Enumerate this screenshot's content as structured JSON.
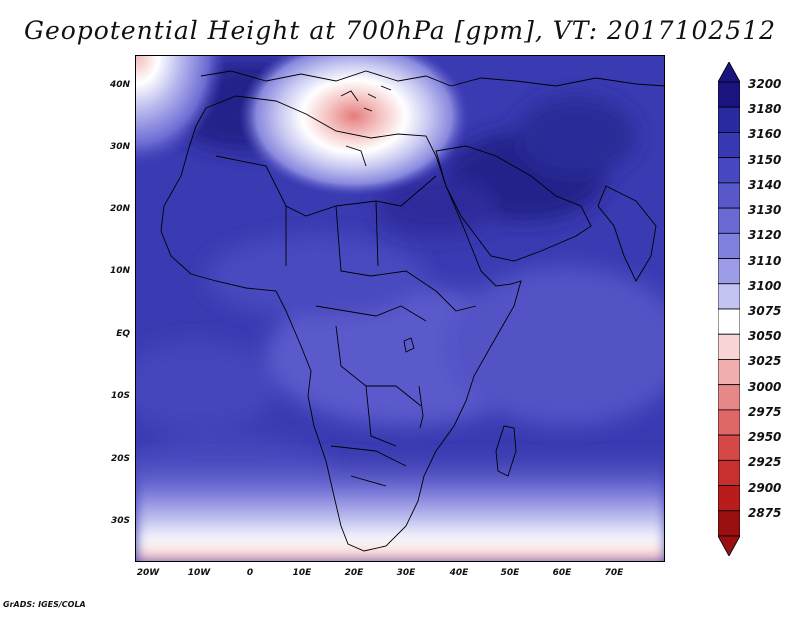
{
  "title": "Geopotential Height at 700hPa [gpm], VT: 2017102512",
  "footer": "GrADS: IGES/COLA",
  "latitude_ticks": [
    "40N",
    "30N",
    "20N",
    "10N",
    "EQ",
    "10S",
    "20S",
    "30S"
  ],
  "longitude_ticks": [
    "20W",
    "10W",
    "0",
    "10E",
    "20E",
    "30E",
    "40E",
    "50E",
    "60E",
    "70E"
  ],
  "colorbar": {
    "labels": [
      "3200",
      "3180",
      "3160",
      "3150",
      "3140",
      "3130",
      "3120",
      "3110",
      "3100",
      "3075",
      "3050",
      "3025",
      "3000",
      "2975",
      "2950",
      "2925",
      "2900",
      "2875"
    ],
    "colors": [
      "#1a1480",
      "#2a2aa0",
      "#3838b4",
      "#4848c0",
      "#5858ca",
      "#6a6ad4",
      "#8080de",
      "#9c9ce8",
      "#c4c4f2",
      "#ffffff",
      "#f8d4d4",
      "#f0aeae",
      "#e68888",
      "#de6868",
      "#d44848",
      "#c83030",
      "#b81c1c",
      "#9a1010"
    ]
  },
  "colors": {
    "ocean_base": "#3c3cb4",
    "high": "#25208c",
    "low_anomaly": "#ffffff",
    "border": "#000000"
  }
}
